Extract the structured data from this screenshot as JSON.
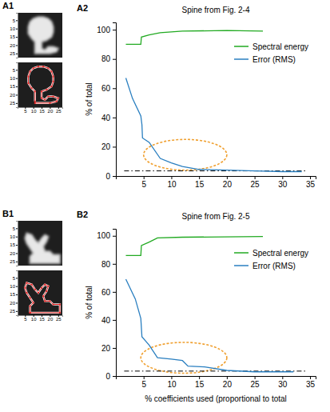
{
  "chart_data": [
    {
      "panel": "A1",
      "type": "outline",
      "color": "#e02020",
      "marker": "square",
      "xlim": [
        0.5,
        27.5
      ],
      "ylim": [
        0.5,
        27.5
      ],
      "xticks": [
        5,
        10,
        15,
        20,
        25
      ],
      "yticks": [
        5,
        10,
        15,
        20,
        25
      ],
      "x": [
        11,
        11,
        9,
        7,
        7,
        8,
        10,
        13,
        16,
        19,
        21,
        22,
        22,
        21,
        18,
        15,
        15,
        17,
        19,
        22,
        25,
        24,
        20,
        11
      ],
      "y": [
        24,
        18,
        16,
        13,
        9,
        6,
        4,
        3,
        3,
        4,
        6,
        9,
        12,
        15,
        17,
        18,
        22,
        23,
        21,
        21,
        22,
        24,
        25,
        25
      ]
    },
    {
      "panel": "A2",
      "type": "line",
      "title": "Spine from Fig. 2-4",
      "y_label": "% of total",
      "xlim": [
        0,
        36
      ],
      "ylim": [
        0,
        105
      ],
      "xticks": [
        5,
        10,
        15,
        20,
        25,
        30,
        35
      ],
      "yticks": [
        0,
        20,
        40,
        60,
        80,
        100
      ],
      "legend": "upper right",
      "threshold": 3.5,
      "threshold_x": [
        1.5,
        34.5
      ],
      "highlight": {
        "x": [
          5,
          20
        ],
        "y": [
          4,
          25
        ]
      },
      "series": [
        {
          "name": "Spectral energy",
          "color": "#22aa22",
          "line_style": "solid",
          "x": [
            1.8,
            4.5,
            4.6,
            6,
            8,
            12,
            20,
            26.5
          ],
          "values": [
            90,
            90,
            95,
            96.5,
            98,
            99,
            99.5,
            99
          ]
        },
        {
          "name": "Error (RMS)",
          "color": "#2a7fc0",
          "line_style": "solid",
          "x": [
            1.8,
            3,
            4.5,
            4.7,
            4.8,
            6,
            8,
            10,
            12,
            15,
            20,
            25,
            30,
            33.5
          ],
          "values": [
            67,
            53,
            41,
            35,
            26,
            23,
            12,
            9,
            6.5,
            4.5,
            4,
            3.5,
            3,
            3
          ]
        }
      ]
    },
    {
      "panel": "B1",
      "type": "outline",
      "color": "#e02020",
      "marker": "square",
      "xlim": [
        0.5,
        27.5
      ],
      "ylim": [
        0.5,
        27.5
      ],
      "xticks": [
        5,
        10,
        15,
        20,
        25
      ],
      "yticks": [
        5,
        10,
        15,
        20,
        25
      ],
      "x": [
        8,
        8,
        10,
        8,
        6,
        5,
        6,
        9,
        11,
        13,
        15,
        17,
        19,
        18,
        16,
        17,
        20,
        22,
        26,
        26,
        8
      ],
      "y": [
        26,
        22,
        20,
        17,
        14,
        11,
        8,
        9,
        12,
        14,
        11,
        9,
        10,
        13,
        16,
        19,
        19,
        21,
        21,
        26,
        26
      ]
    },
    {
      "panel": "B2",
      "type": "line",
      "title": "Spine from Fig. 2-5",
      "y_label": "% of total",
      "x_label": "% coefficients used (proportional to total",
      "xlim": [
        0,
        36
      ],
      "ylim": [
        0,
        105
      ],
      "xticks": [
        5,
        10,
        15,
        20,
        25,
        30,
        35
      ],
      "yticks": [
        0,
        20,
        40,
        60,
        80,
        100
      ],
      "legend": "upper right",
      "threshold": 3.5,
      "threshold_x": [
        1.5,
        34.5
      ],
      "highlight": {
        "x": [
          4.5,
          20
        ],
        "y": [
          2,
          24
        ]
      },
      "series": [
        {
          "name": "Spectral energy",
          "color": "#22aa22",
          "line_style": "solid",
          "x": [
            1.8,
            4.5,
            4.6,
            6,
            7.5,
            12,
            26.5
          ],
          "values": [
            86,
            86,
            93,
            95.5,
            98.5,
            99,
            99.5
          ]
        },
        {
          "name": "Error (RMS)",
          "color": "#2a7fc0",
          "line_style": "solid",
          "x": [
            1.8,
            3.5,
            4.5,
            4.7,
            6,
            7.5,
            10,
            12,
            13,
            16,
            20,
            25,
            32
          ],
          "values": [
            69,
            55,
            41,
            28,
            22,
            13,
            12,
            11,
            7,
            6.5,
            4,
            3,
            3
          ]
        }
      ]
    }
  ]
}
